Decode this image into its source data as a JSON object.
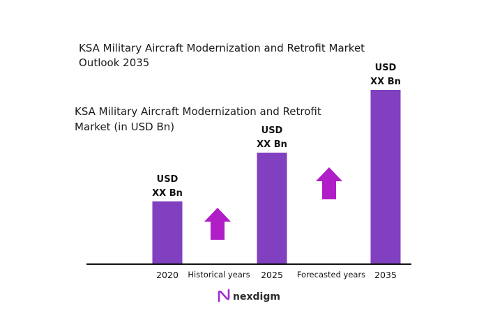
{
  "chart_data": {
    "type": "bar",
    "title_lines": [
      "KSA Military Aircraft Modernization and Retrofit Market",
      "Outlook 2035"
    ],
    "subtitle_lines": [
      "KSA Military Aircraft Modernization and Retrofit",
      "Market (in USD Bn)"
    ],
    "categories": [
      "2020",
      "2025",
      "2035"
    ],
    "values": [
      90,
      160,
      250
    ],
    "ylim": [
      0,
      260
    ],
    "bar_color": "#8040c0",
    "data_labels": [
      [
        "USD",
        "XX Bn"
      ],
      [
        "USD",
        "XX Bn"
      ],
      [
        "USD",
        "XX Bn"
      ]
    ],
    "period_labels": [
      "Historical years",
      "Forecasted years"
    ],
    "arrow_color": "#b01ec8",
    "grid": false,
    "legend": "none"
  },
  "brand": {
    "name": "nexdigm",
    "icon": "nexdigm-logo-icon",
    "accent_color": "#a12bd0"
  }
}
